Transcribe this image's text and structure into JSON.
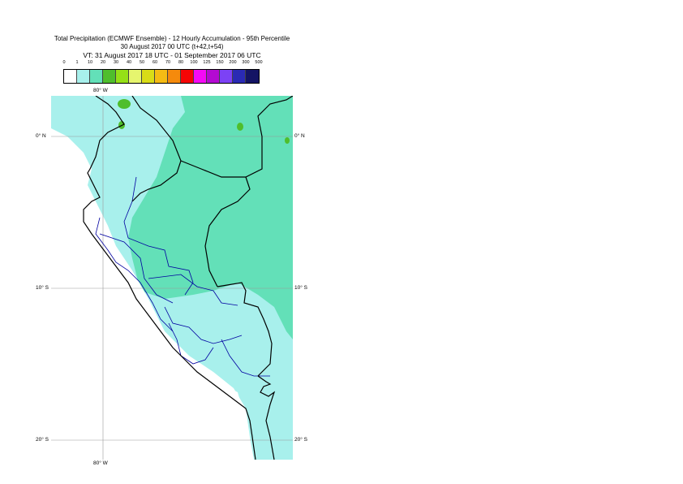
{
  "title": {
    "line1": "Total Precipitation (ECMWF Ensemble) - 12 Hourly Accumulation - 95th Percentile",
    "line2": "30 August 2017 00 UTC (t+42,t+54)",
    "line3": "VT: 31 August 2017 18 UTC - 01 September 2017 06 UTC"
  },
  "legend": {
    "labels": [
      "0",
      "1",
      "10",
      "20",
      "30",
      "40",
      "50",
      "60",
      "70",
      "80",
      "100",
      "125",
      "150",
      "200",
      "300",
      "500"
    ],
    "colors": [
      "#ffffff",
      "#a8f0ec",
      "#63e0b8",
      "#4fbe2c",
      "#95e017",
      "#e6f56e",
      "#d9dc17",
      "#f5bb14",
      "#f58a0c",
      "#f50505",
      "#f50af5",
      "#b40ad2",
      "#7c42f5",
      "#2a2ab4",
      "#141464"
    ]
  },
  "map": {
    "lon_labels": {
      "top": "80° W",
      "bottom": "80° W"
    },
    "lat_labels": [
      "0° N",
      "10° S",
      "20° S"
    ],
    "colors": {
      "background": "#63e0b8",
      "light": "#a8f0ec",
      "ocean": "#ffffff",
      "green": "#4fbe2c",
      "coast": "#000000",
      "admin": "#0000a0",
      "grid": "#9a9a9a"
    }
  }
}
